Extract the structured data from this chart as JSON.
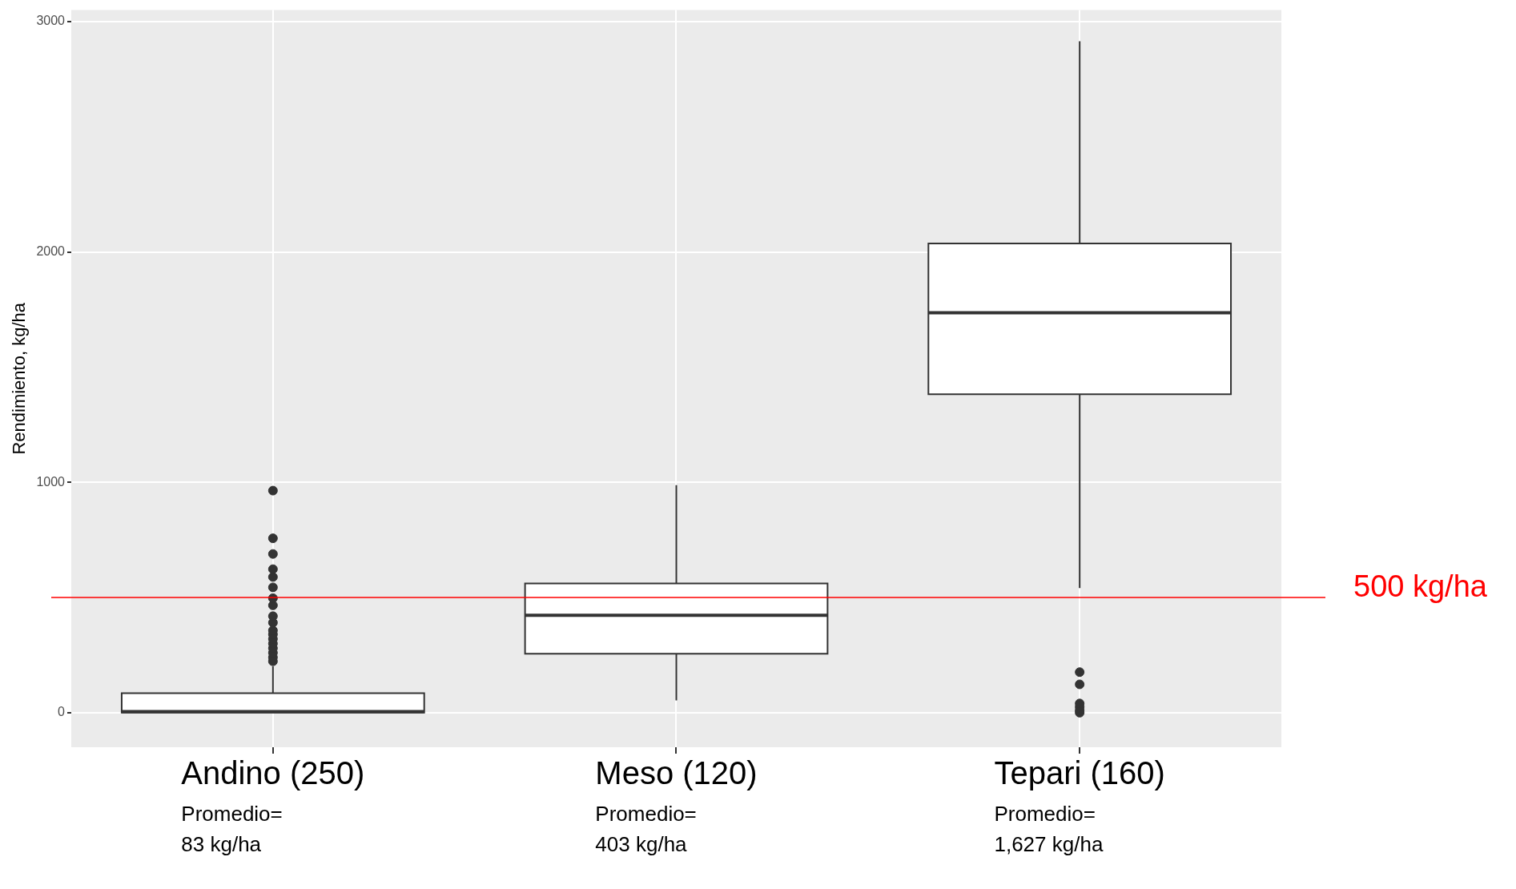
{
  "chart_data": {
    "type": "box",
    "ylabel": "Rendimiento, kg/ha",
    "categories": [
      "Andino (250)",
      "Meso (120)",
      "Tepari (160)"
    ],
    "color": "#ffffff",
    "boxes": [
      {
        "low": 0,
        "q1": 0,
        "median": 5,
        "q3": 85,
        "high": 201,
        "outliers": [
          223,
          240,
          260,
          280,
          300,
          320,
          340,
          357,
          391,
          419,
          466,
          497,
          544,
          589,
          623,
          689,
          757,
          964
        ]
      },
      {
        "low": 53,
        "q1": 256,
        "median": 423,
        "q3": 561,
        "high": 988
      },
      {
        "low": 541,
        "q1": 1382,
        "median": 1736,
        "q3": 2037,
        "high": 2915,
        "outliers": [
          0,
          10,
          25,
          40,
          123,
          176
        ]
      }
    ],
    "ylim": [
      -150,
      3050
    ],
    "yticks": [
      0,
      1000,
      2000,
      3000
    ],
    "grid": true,
    "ref_lines": [
      {
        "axis": "y",
        "value": 500,
        "label": "500 kg/ha",
        "color": "#ff0000"
      }
    ],
    "annotations": [
      "Promedio=\n83 kg/ha",
      "Promedio=\n403 kg/ha",
      "Promedio=\n1,627 kg/ha"
    ]
  }
}
